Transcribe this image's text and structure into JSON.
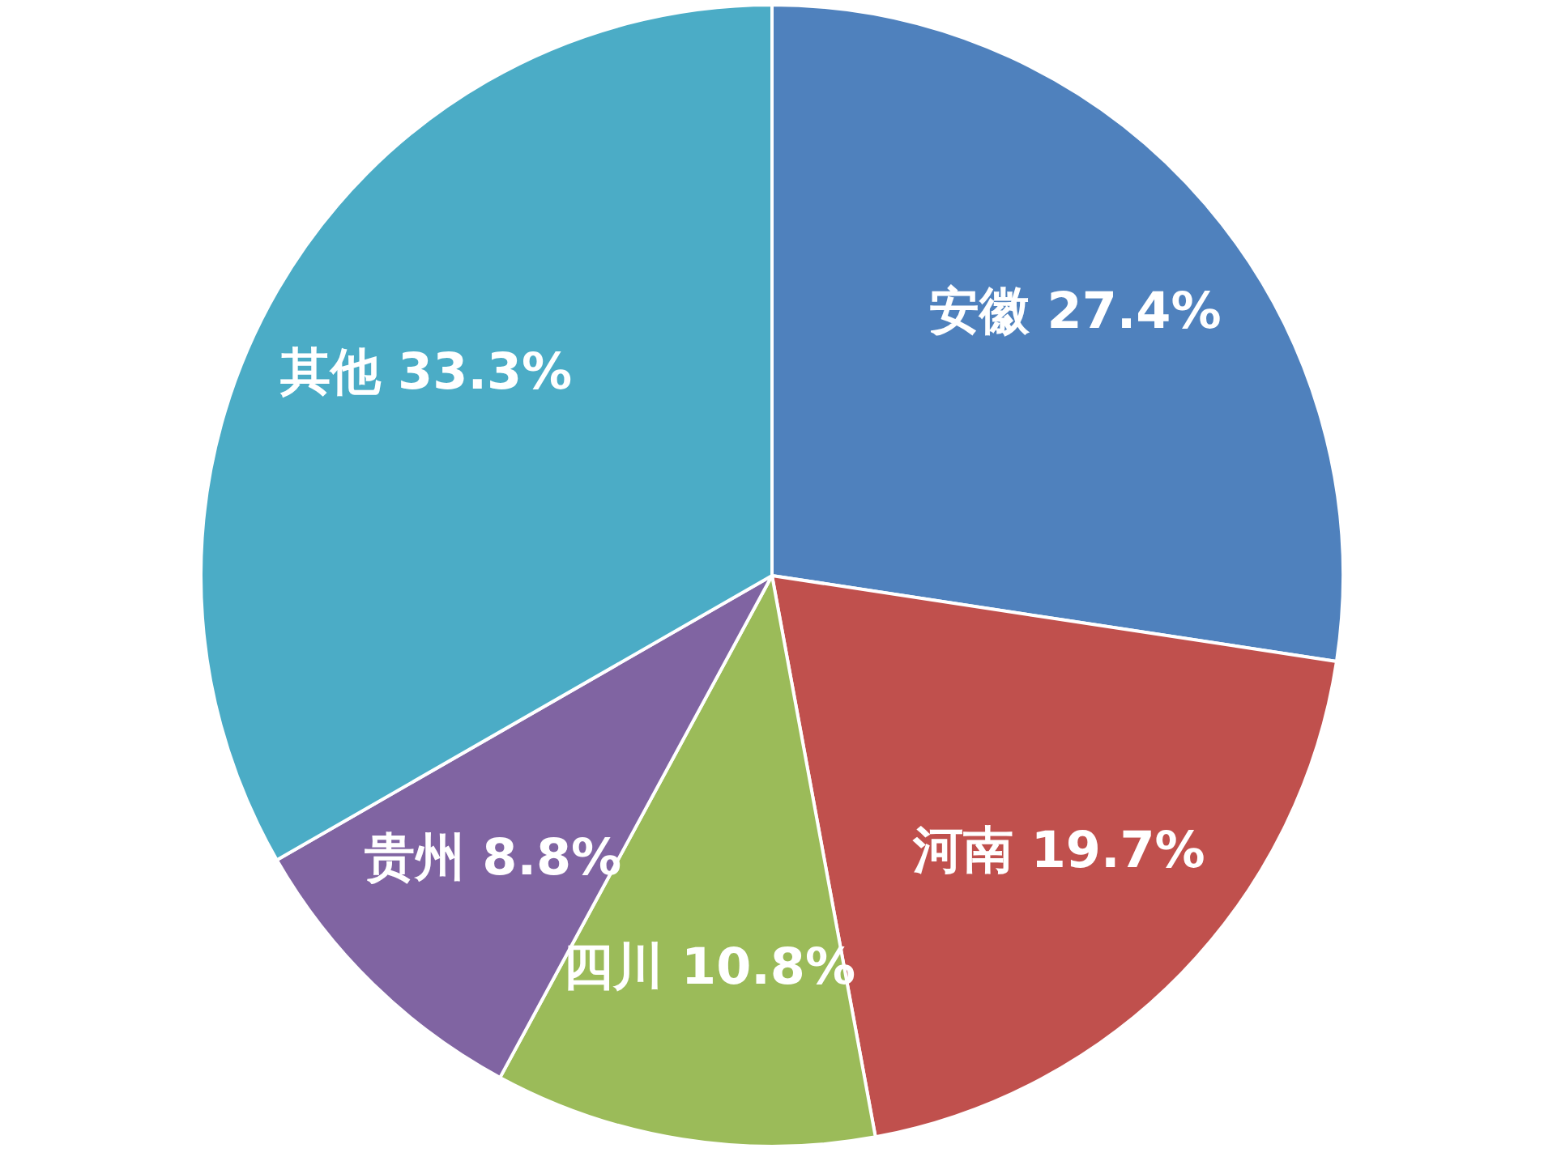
{
  "chart_data": {
    "type": "pie",
    "categories": [
      "安徽",
      "河南",
      "四川",
      "贵州",
      "其他"
    ],
    "values": [
      27.4,
      19.7,
      10.8,
      8.8,
      33.3
    ],
    "colors": [
      "#4f81bd",
      "#c0504d",
      "#9bbb59",
      "#8064a2",
      "#4bacc6"
    ],
    "value_labels": [
      "27.4%",
      "19.7%",
      "10.8%",
      "8.8%",
      "33.3%"
    ],
    "legend": false
  }
}
